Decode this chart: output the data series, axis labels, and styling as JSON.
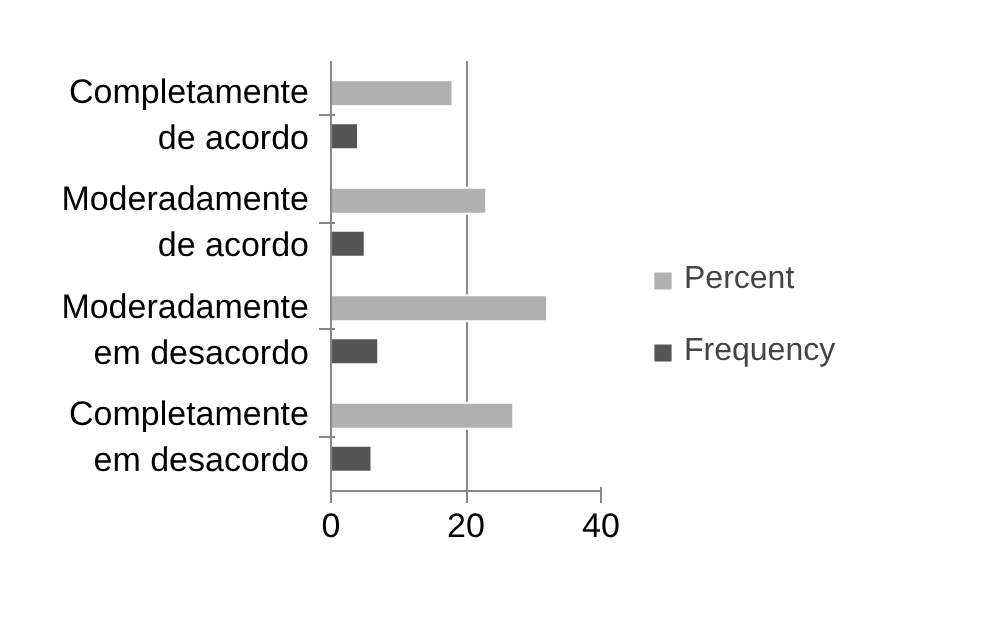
{
  "chart_data": {
    "type": "bar",
    "orientation": "horizontal",
    "categories": [
      "Completamente de acordo",
      "Moderadamente de acordo",
      "Moderadamente em desacordo",
      "Completamente em desacordo"
    ],
    "series": [
      {
        "name": "Percent",
        "color": "#b0b0b0",
        "values": [
          18,
          23,
          32,
          27
        ]
      },
      {
        "name": "Frequency",
        "color": "#555555",
        "values": [
          4,
          5,
          7,
          6
        ]
      }
    ],
    "xlim": [
      0,
      40
    ],
    "xticks": [
      0,
      20,
      40
    ],
    "grid": "x",
    "legend": "right"
  }
}
